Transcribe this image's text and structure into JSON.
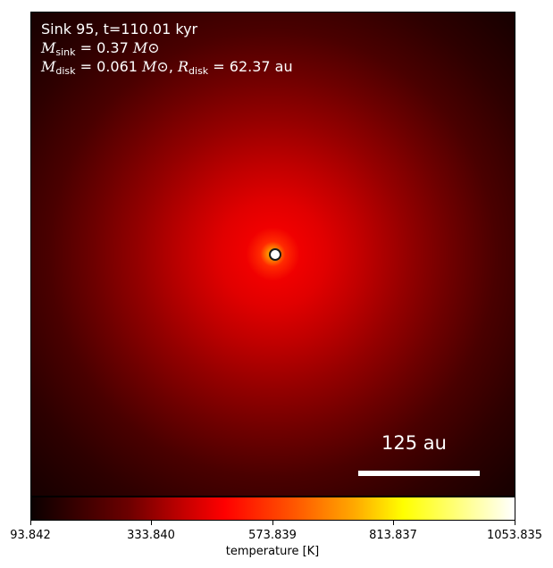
{
  "annotation": {
    "line1": "Sink 95, t=110.01 kyr",
    "sink_mass_value": "= 0.37",
    "disk_mass_value": "= 0.061",
    "disk_radius_value": "= 62.37 au",
    "mass_symbol": "M",
    "radius_symbol": "R",
    "sub_sink": "sink",
    "sub_disk": "disk",
    "solar_symbol": "M⊙"
  },
  "scalebar": {
    "label": "125 au",
    "length_au": 125
  },
  "colorbar": {
    "label": "temperature [K]",
    "colormap": "hot",
    "ticks": [
      "93.842",
      "333.840",
      "573.839",
      "813.837",
      "1053.835"
    ]
  }
}
